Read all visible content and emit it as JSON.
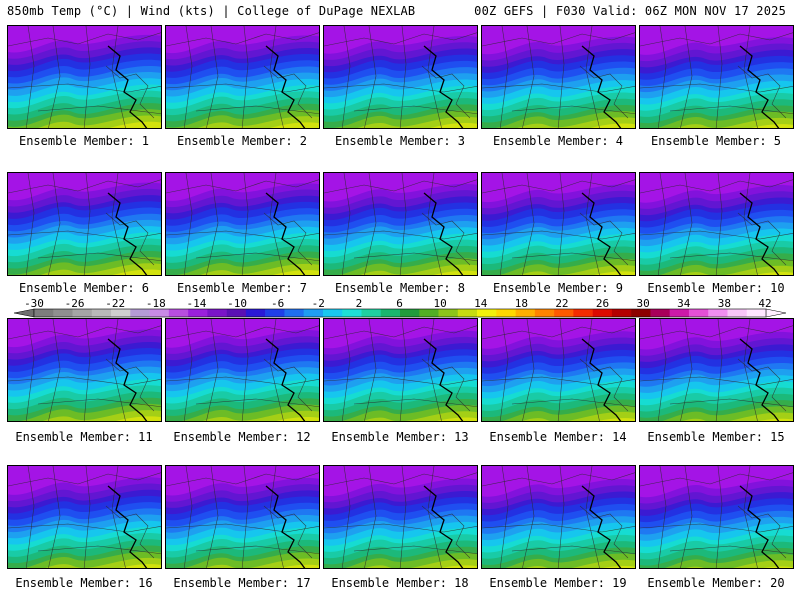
{
  "header": {
    "left_title": "850mb Temp (°C) | Wind (kts) | College of DuPage NEXLAB",
    "right_title": "00Z GEFS | F030 Valid: 06Z MON NOV 17 2025"
  },
  "panels": [
    {
      "label": "Ensemble Member: 1"
    },
    {
      "label": "Ensemble Member: 2"
    },
    {
      "label": "Ensemble Member: 3"
    },
    {
      "label": "Ensemble Member: 4"
    },
    {
      "label": "Ensemble Member: 5"
    },
    {
      "label": "Ensemble Member: 6"
    },
    {
      "label": "Ensemble Member: 7"
    },
    {
      "label": "Ensemble Member: 8"
    },
    {
      "label": "Ensemble Member: 9"
    },
    {
      "label": "Ensemble Member: 10"
    },
    {
      "label": "Ensemble Member: 11"
    },
    {
      "label": "Ensemble Member: 12"
    },
    {
      "label": "Ensemble Member: 13"
    },
    {
      "label": "Ensemble Member: 14"
    },
    {
      "label": "Ensemble Member: 15"
    },
    {
      "label": "Ensemble Member: 16"
    },
    {
      "label": "Ensemble Member: 17"
    },
    {
      "label": "Ensemble Member: 18"
    },
    {
      "label": "Ensemble Member: 19"
    },
    {
      "label": "Ensemble Member: 20"
    }
  ],
  "colorbar": {
    "tick_labels": [
      "-30",
      "-26",
      "-22",
      "-18",
      "-14",
      "-10",
      "-6",
      "-2",
      "2",
      "6",
      "10",
      "14",
      "18",
      "22",
      "26",
      "30",
      "34",
      "38",
      "42"
    ],
    "colors": [
      "#7d7d7d",
      "#8f8f8f",
      "#a5a5a5",
      "#b9b9b9",
      "#cfcfcf",
      "#b59bd6",
      "#c98ae6",
      "#b84de0",
      "#9a20dc",
      "#7a14c8",
      "#5a10b4",
      "#2a19d6",
      "#1f3fe8",
      "#1f6ff0",
      "#1f9df2",
      "#19c8f0",
      "#1ee0d6",
      "#1fd0a0",
      "#1ab66e",
      "#229c3c",
      "#52ae24",
      "#8cc41a",
      "#c6dc10",
      "#f2f20a",
      "#ffd800",
      "#ffb000",
      "#ff8400",
      "#ff5a00",
      "#f52c00",
      "#dc0a00",
      "#b40000",
      "#8c0000",
      "#a8005a",
      "#cc1aa8",
      "#e450d6",
      "#f08ef0",
      "#f8c6f8",
      "#ffe6ff"
    ]
  }
}
